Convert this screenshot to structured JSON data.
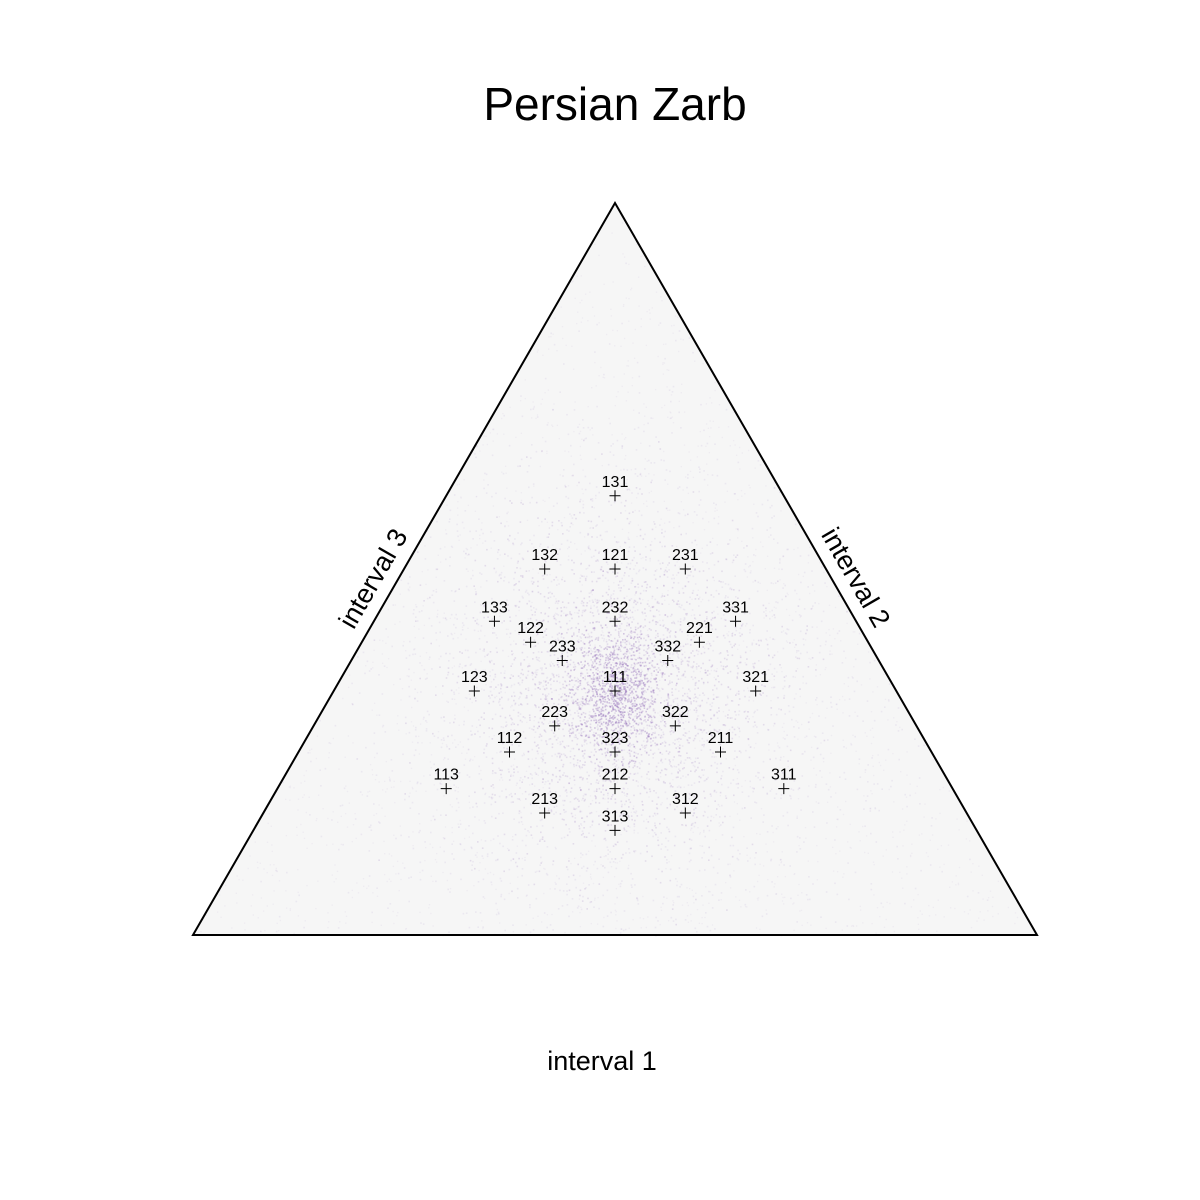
{
  "chart_data": {
    "type": "scatter",
    "subtype": "ternary",
    "title": "Persian Zarb",
    "axes": {
      "bottom": "interval 1",
      "right": "interval 2",
      "left": "interval 3"
    },
    "plot_background": "#f6f6f6",
    "density_color": "#8e6bb8",
    "density_center": [
      0.3333,
      0.3333,
      0.3333
    ],
    "points": [
      {
        "label": "111",
        "c": [
          0.3333,
          0.3333,
          0.3333
        ]
      },
      {
        "label": "131",
        "c": [
          0.2,
          0.6,
          0.2
        ]
      },
      {
        "label": "121",
        "c": [
          0.25,
          0.5,
          0.25
        ]
      },
      {
        "label": "132",
        "c": [
          0.1667,
          0.5,
          0.3333
        ]
      },
      {
        "label": "231",
        "c": [
          0.3333,
          0.5,
          0.1667
        ]
      },
      {
        "label": "232",
        "c": [
          0.2857,
          0.4286,
          0.2857
        ]
      },
      {
        "label": "133",
        "c": [
          0.1429,
          0.4286,
          0.4286
        ]
      },
      {
        "label": "331",
        "c": [
          0.4286,
          0.4286,
          0.1429
        ]
      },
      {
        "label": "122",
        "c": [
          0.2,
          0.4,
          0.4
        ]
      },
      {
        "label": "221",
        "c": [
          0.4,
          0.4,
          0.2
        ]
      },
      {
        "label": "233",
        "c": [
          0.25,
          0.375,
          0.375
        ]
      },
      {
        "label": "332",
        "c": [
          0.375,
          0.375,
          0.25
        ]
      },
      {
        "label": "123",
        "c": [
          0.1667,
          0.3333,
          0.5
        ]
      },
      {
        "label": "321",
        "c": [
          0.5,
          0.3333,
          0.1667
        ]
      },
      {
        "label": "223",
        "c": [
          0.2857,
          0.2857,
          0.4286
        ]
      },
      {
        "label": "322",
        "c": [
          0.4286,
          0.2857,
          0.2857
        ]
      },
      {
        "label": "112",
        "c": [
          0.25,
          0.25,
          0.5
        ]
      },
      {
        "label": "211",
        "c": [
          0.5,
          0.25,
          0.25
        ]
      },
      {
        "label": "323",
        "c": [
          0.375,
          0.25,
          0.375
        ]
      },
      {
        "label": "113",
        "c": [
          0.2,
          0.2,
          0.6
        ]
      },
      {
        "label": "311",
        "c": [
          0.6,
          0.2,
          0.2
        ]
      },
      {
        "label": "212",
        "c": [
          0.4,
          0.2,
          0.4
        ]
      },
      {
        "label": "213",
        "c": [
          0.3333,
          0.1667,
          0.5
        ]
      },
      {
        "label": "312",
        "c": [
          0.5,
          0.1667,
          0.3333
        ]
      },
      {
        "label": "313",
        "c": [
          0.4286,
          0.1429,
          0.4286
        ]
      }
    ]
  }
}
